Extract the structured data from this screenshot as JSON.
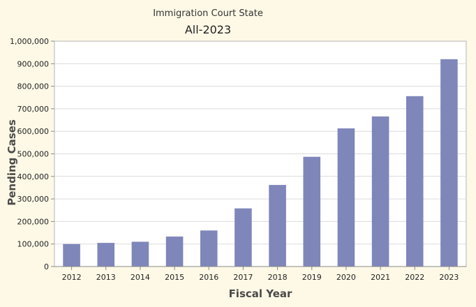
{
  "chart_data": {
    "type": "bar",
    "title": "Immigration Court State",
    "subtitle": "All-2023",
    "xlabel": "Fiscal Year",
    "ylabel": "Pending Cases",
    "categories": [
      "2012",
      "2013",
      "2014",
      "2015",
      "2016",
      "2017",
      "2018",
      "2019",
      "2020",
      "2021",
      "2022",
      "2023"
    ],
    "values": [
      100000,
      105000,
      110000,
      133000,
      160000,
      258000,
      362000,
      487000,
      613000,
      666000,
      756000,
      920000
    ],
    "ylim": [
      0,
      1000000
    ],
    "yticks": [
      0,
      100000,
      200000,
      300000,
      400000,
      500000,
      600000,
      700000,
      800000,
      900000,
      1000000
    ],
    "ytick_labels": [
      "0",
      "100,000",
      "200,000",
      "300,000",
      "400,000",
      "500,000",
      "600,000",
      "700,000",
      "800,000",
      "900,000",
      "1,000,000"
    ],
    "grid": true,
    "legend": "none",
    "bar_color": "#7f86ba",
    "plot_background": "#ffffff",
    "page_background": "#fdf9e6"
  }
}
